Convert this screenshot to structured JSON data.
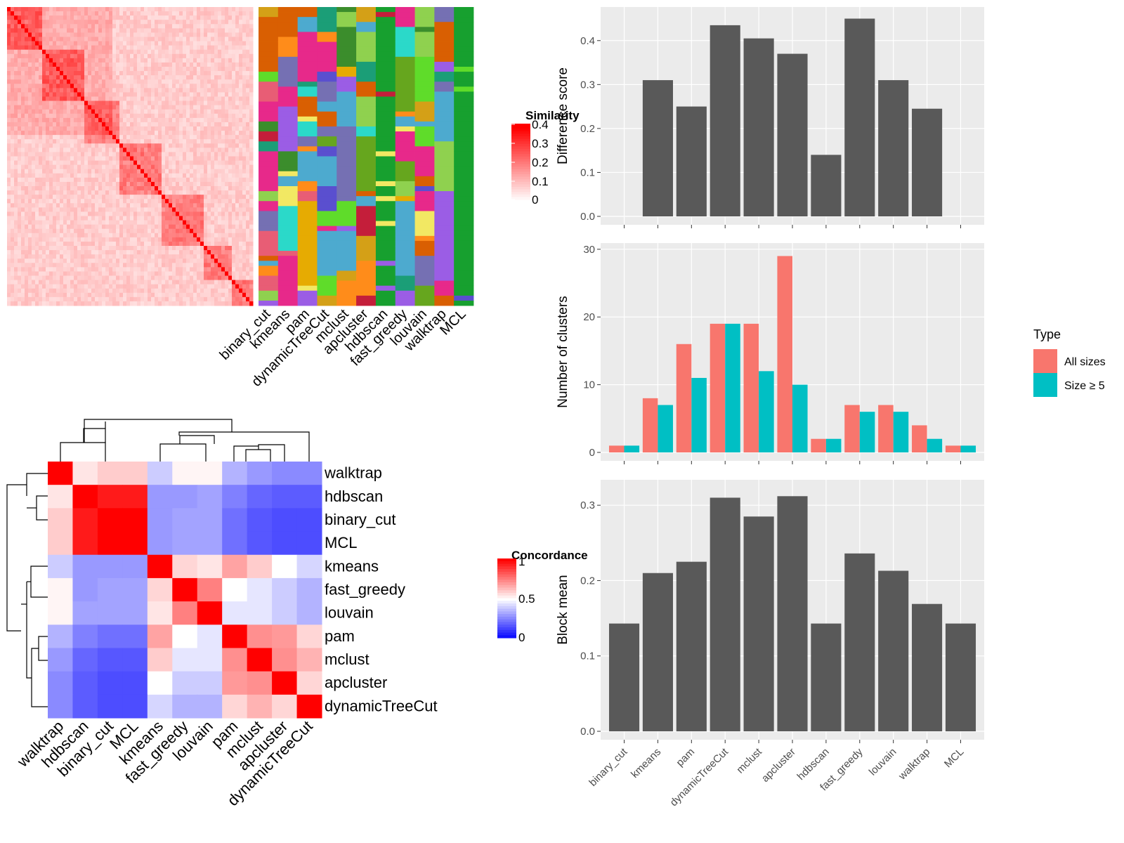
{
  "methods": [
    "binary_cut",
    "kmeans",
    "pam",
    "dynamicTreeCut",
    "mclust",
    "apcluster",
    "hdbscan",
    "fast_greedy",
    "louvain",
    "walktrap",
    "MCL"
  ],
  "similarity_legend": {
    "title": "Similarity",
    "ticks": [
      "0",
      "0.1",
      "0.2",
      "0.3",
      "0.4"
    ]
  },
  "concordance_legend": {
    "title": "Concordance",
    "ticks": [
      "0",
      "0.5",
      "1"
    ]
  },
  "colors": {
    "heat_high": "#ff0000",
    "conc_low": "#0000ff",
    "bar_fill": "#595959",
    "all_sizes": "#f8766d",
    "size_ge5": "#00bfc4",
    "panel_bg": "#ebebeb"
  },
  "type_legend": {
    "title": "Type",
    "items": [
      "All sizes",
      "Size ≥ 5"
    ]
  },
  "chart_data": [
    {
      "type": "heatmap",
      "title": "",
      "description_value": "similarity matrix",
      "legend_title": "Similarity",
      "value_range": [
        0,
        0.4
      ]
    },
    {
      "type": "heatmap",
      "columns": [
        "binary_cut",
        "kmeans",
        "pam",
        "dynamicTreeCut",
        "mclust",
        "apcluster",
        "hdbscan",
        "fast_greedy",
        "louvain",
        "walktrap",
        "MCL"
      ]
    },
    {
      "type": "heatmap",
      "legend_title": "Concordance",
      "row_order": [
        "walktrap",
        "hdbscan",
        "binary_cut",
        "MCL",
        "kmeans",
        "fast_greedy",
        "louvain",
        "pam",
        "mclust",
        "apcluster",
        "dynamicTreeCut"
      ],
      "col_order": [
        "walktrap",
        "hdbscan",
        "binary_cut",
        "MCL",
        "kmeans",
        "fast_greedy",
        "louvain",
        "pam",
        "mclust",
        "apcluster",
        "dynamicTreeCut"
      ],
      "values": [
        [
          1.0,
          0.55,
          0.6,
          0.6,
          0.4,
          0.52,
          0.52,
          0.35,
          0.3,
          0.27,
          0.27
        ],
        [
          0.55,
          1.0,
          0.95,
          0.95,
          0.3,
          0.3,
          0.32,
          0.25,
          0.2,
          0.18,
          0.18
        ],
        [
          0.6,
          0.95,
          1.0,
          1.0,
          0.3,
          0.32,
          0.32,
          0.22,
          0.17,
          0.15,
          0.15
        ],
        [
          0.6,
          0.95,
          1.0,
          1.0,
          0.3,
          0.32,
          0.32,
          0.22,
          0.17,
          0.15,
          0.15
        ],
        [
          0.4,
          0.3,
          0.3,
          0.3,
          1.0,
          0.58,
          0.55,
          0.68,
          0.6,
          0.5,
          0.42
        ],
        [
          0.52,
          0.3,
          0.32,
          0.32,
          0.58,
          1.0,
          0.75,
          0.5,
          0.45,
          0.4,
          0.35
        ],
        [
          0.52,
          0.32,
          0.32,
          0.32,
          0.55,
          0.75,
          1.0,
          0.45,
          0.45,
          0.4,
          0.35
        ],
        [
          0.35,
          0.25,
          0.22,
          0.22,
          0.68,
          0.5,
          0.45,
          1.0,
          0.72,
          0.7,
          0.58
        ],
        [
          0.3,
          0.2,
          0.17,
          0.17,
          0.6,
          0.45,
          0.45,
          0.72,
          1.0,
          0.72,
          0.65
        ],
        [
          0.27,
          0.18,
          0.15,
          0.15,
          0.5,
          0.4,
          0.4,
          0.7,
          0.72,
          1.0,
          0.58
        ],
        [
          0.27,
          0.18,
          0.15,
          0.15,
          0.42,
          0.35,
          0.35,
          0.58,
          0.65,
          0.58,
          1.0
        ]
      ],
      "value_range": [
        0,
        1
      ]
    },
    {
      "type": "bar",
      "categories": [
        "binary_cut",
        "kmeans",
        "pam",
        "dynamicTreeCut",
        "mclust",
        "apcluster",
        "hdbscan",
        "fast_greedy",
        "louvain",
        "walktrap",
        "MCL"
      ],
      "values": [
        0,
        0.31,
        0.25,
        0.435,
        0.405,
        0.37,
        0.14,
        0.45,
        0.31,
        0.245,
        0
      ],
      "ylabel": "Difference score",
      "ylim": [
        0,
        0.47
      ],
      "yticks": [
        "0.0",
        "0.1",
        "0.2",
        "0.3",
        "0.4"
      ]
    },
    {
      "type": "bar",
      "categories": [
        "binary_cut",
        "kmeans",
        "pam",
        "dynamicTreeCut",
        "mclust",
        "apcluster",
        "hdbscan",
        "fast_greedy",
        "louvain",
        "walktrap",
        "MCL"
      ],
      "series": [
        {
          "name": "All sizes",
          "values": [
            1,
            8,
            16,
            19,
            19,
            29,
            2,
            7,
            7,
            4,
            1
          ]
        },
        {
          "name": "Size ≥ 5",
          "values": [
            1,
            7,
            11,
            19,
            12,
            10,
            2,
            6,
            6,
            2,
            1
          ]
        }
      ],
      "ylabel": "Number of clusters",
      "ylim": [
        0,
        30.5
      ],
      "yticks": [
        "0",
        "10",
        "20",
        "30"
      ],
      "legend_title": "Type"
    },
    {
      "type": "bar",
      "categories": [
        "binary_cut",
        "kmeans",
        "pam",
        "dynamicTreeCut",
        "mclust",
        "apcluster",
        "hdbscan",
        "fast_greedy",
        "louvain",
        "walktrap",
        "MCL"
      ],
      "values": [
        0.143,
        0.21,
        0.225,
        0.31,
        0.285,
        0.312,
        0.143,
        0.236,
        0.213,
        0.169,
        0.143
      ],
      "ylabel": "Block mean",
      "ylim": [
        0,
        0.33
      ],
      "yticks": [
        "0.0",
        "0.1",
        "0.2",
        "0.3"
      ]
    }
  ]
}
